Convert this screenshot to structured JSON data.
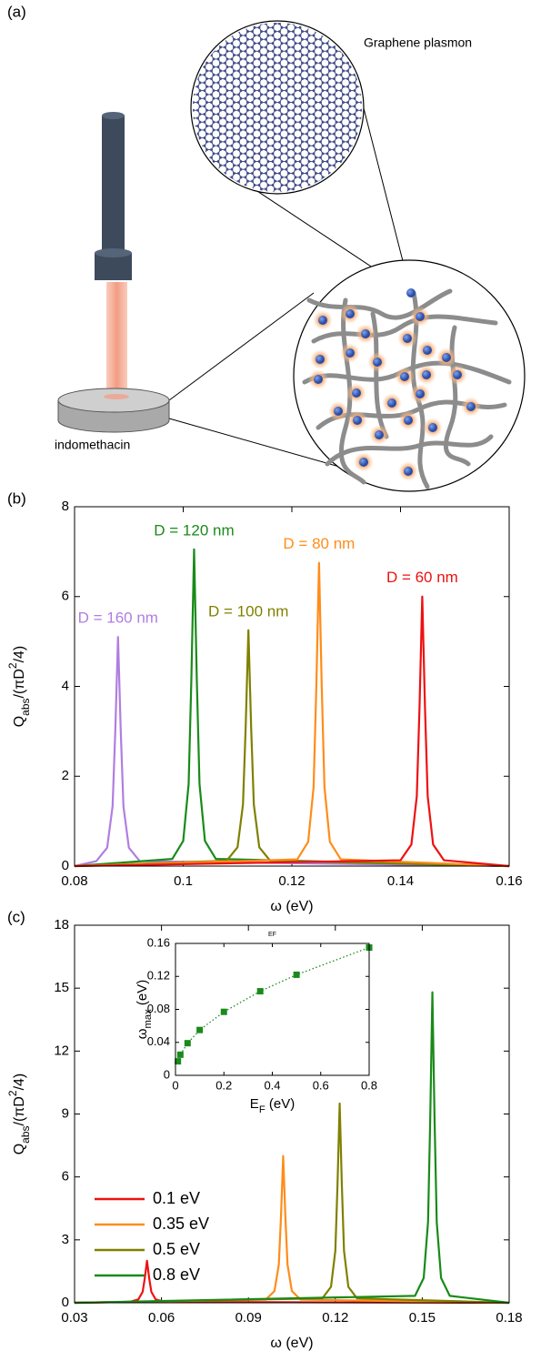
{
  "diagram": {
    "label": "(a)",
    "callout": "Graphene plasmon",
    "sample": "indomethacin"
  },
  "chart_data": [
    {
      "type": "line",
      "panel_label": "(b)",
      "x_label": [
        {
          "text": "ω (eV)"
        }
      ],
      "y_label": [
        {
          "text": "Q"
        },
        {
          "text": "abs",
          "shift": "sub"
        },
        {
          "text": "/(πD"
        },
        {
          "text": "2",
          "shift": "super"
        },
        {
          "text": "/4)"
        }
      ],
      "xlim": [
        0.08,
        0.16
      ],
      "xticks": [
        0.08,
        0.1,
        0.12,
        0.14,
        0.16
      ],
      "ylim": [
        0,
        8
      ],
      "yticks": [
        0,
        2,
        4,
        6,
        8
      ],
      "labels_at_peaks": true,
      "series": [
        {
          "name": "D = 160 nm",
          "color": "#b07ee0",
          "x": [
            0.08,
            0.084,
            0.086,
            0.087,
            0.0875,
            0.088,
            0.0885,
            0.089,
            0.09,
            0.092,
            0.16
          ],
          "values": [
            0,
            0.11,
            0.41,
            1.33,
            3.01,
            5.1,
            3.01,
            1.33,
            0.41,
            0.11,
            0
          ]
        },
        {
          "name": "D = 120 nm",
          "color": "#1a8a1a",
          "x": [
            0.08,
            0.098,
            0.1,
            0.101,
            0.1015,
            0.102,
            0.1025,
            0.103,
            0.104,
            0.106,
            0.16
          ],
          "values": [
            0,
            0.16,
            0.56,
            1.83,
            4.16,
            7.05,
            4.16,
            1.83,
            0.56,
            0.16,
            0
          ]
        },
        {
          "name": "D = 100 nm",
          "color": "#808000",
          "x": [
            0.08,
            0.108,
            0.11,
            0.111,
            0.1115,
            0.112,
            0.1125,
            0.113,
            0.114,
            0.116,
            0.16
          ],
          "values": [
            0,
            0.12,
            0.42,
            1.37,
            3.1,
            5.25,
            3.1,
            1.37,
            0.42,
            0.12,
            0
          ]
        },
        {
          "name": "D = 80 nm",
          "color": "#ff8c1a",
          "x": [
            0.08,
            0.121,
            0.123,
            0.124,
            0.1245,
            0.125,
            0.1255,
            0.126,
            0.127,
            0.129,
            0.16
          ],
          "values": [
            0,
            0.15,
            0.54,
            1.76,
            3.98,
            6.75,
            3.98,
            1.76,
            0.54,
            0.15,
            0
          ]
        },
        {
          "name": "D = 60 nm",
          "color": "#ee1111",
          "x": [
            0.08,
            0.14,
            0.142,
            0.143,
            0.1435,
            0.144,
            0.1445,
            0.145,
            0.146,
            0.148,
            0.16
          ],
          "values": [
            0,
            0.13,
            0.48,
            1.56,
            3.54,
            6.0,
            3.54,
            1.56,
            0.48,
            0.13,
            0
          ]
        }
      ]
    },
    {
      "type": "line",
      "panel_label": "(c)",
      "x_label": [
        {
          "text": "ω (eV)"
        }
      ],
      "y_label": [
        {
          "text": "Q"
        },
        {
          "text": "abs",
          "shift": "sub"
        },
        {
          "text": "/(πD"
        },
        {
          "text": "2",
          "shift": "super"
        },
        {
          "text": "/4)"
        }
      ],
      "xlim": [
        0.03,
        0.18
      ],
      "xticks": [
        0.03,
        0.06,
        0.09,
        0.12,
        0.15,
        0.18
      ],
      "ylim": [
        0,
        18
      ],
      "yticks": [
        0,
        3,
        6,
        9,
        12,
        15,
        18
      ],
      "legend": "lower left",
      "series": [
        {
          "name": "0.1 eV",
          "color": "#ee1111",
          "x": [
            0.03,
            0.049,
            0.052,
            0.0535,
            0.05425,
            0.055,
            0.05575,
            0.0565,
            0.058,
            0.061,
            0.18
          ],
          "values": [
            0,
            0.04,
            0.16,
            0.52,
            1.18,
            2.0,
            1.18,
            0.52,
            0.16,
            0.04,
            0
          ]
        },
        {
          "name": "0.35 eV",
          "color": "#ff8c1a",
          "x": [
            0.03,
            0.096,
            0.099,
            0.1005,
            0.10125,
            0.102,
            0.10275,
            0.1035,
            0.105,
            0.108,
            0.18
          ],
          "values": [
            0,
            0.15,
            0.56,
            1.82,
            4.13,
            7.0,
            4.13,
            1.82,
            0.56,
            0.15,
            0
          ]
        },
        {
          "name": "0.5 eV",
          "color": "#808000",
          "x": [
            0.03,
            0.1155,
            0.1185,
            0.12,
            0.12075,
            0.1215,
            0.12225,
            0.123,
            0.1245,
            0.1275,
            0.18
          ],
          "values": [
            0,
            0.21,
            0.76,
            2.47,
            5.61,
            9.5,
            5.61,
            2.47,
            0.76,
            0.21,
            0
          ]
        },
        {
          "name": "0.8 eV",
          "color": "#1a8a1a",
          "x": [
            0.03,
            0.1475,
            0.1505,
            0.152,
            0.15275,
            0.1535,
            0.15425,
            0.155,
            0.1565,
            0.1595,
            0.18
          ],
          "values": [
            0,
            0.33,
            1.18,
            3.85,
            8.73,
            14.8,
            8.73,
            3.85,
            1.18,
            0.33,
            0
          ]
        }
      ]
    },
    {
      "type": "scatter",
      "title": "EF",
      "x_label": [
        {
          "text": "E"
        },
        {
          "text": "F",
          "shift": "sub"
        },
        {
          "text": " (eV)"
        }
      ],
      "y_label": [
        {
          "text": "ω"
        },
        {
          "text": "max",
          "shift": "sub"
        },
        {
          "text": " (eV)"
        }
      ],
      "xlim": [
        0,
        0.8
      ],
      "xticks": [
        0,
        0.2,
        0.4,
        0.6,
        0.8
      ],
      "ylim": [
        0,
        0.16
      ],
      "yticks": [
        0,
        0.04,
        0.08,
        0.12,
        0.16
      ],
      "color": "#1a8a1a",
      "line": "dotted",
      "x": [
        0.01,
        0.02,
        0.05,
        0.1,
        0.2,
        0.35,
        0.5,
        0.8
      ],
      "values": [
        0.017,
        0.025,
        0.039,
        0.055,
        0.077,
        0.102,
        0.122,
        0.155
      ]
    }
  ]
}
